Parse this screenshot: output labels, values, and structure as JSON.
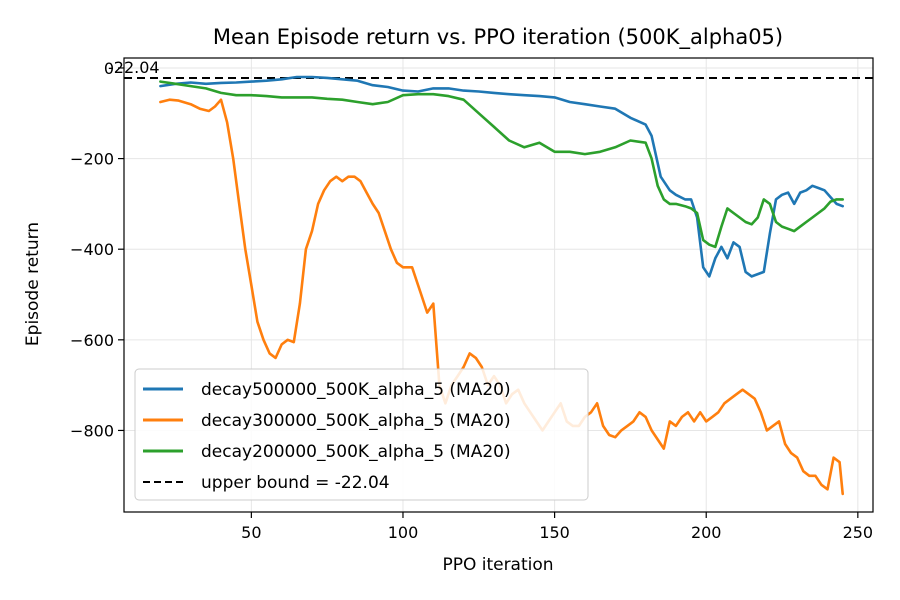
{
  "chart_data": {
    "type": "line",
    "title": "Mean Episode return vs. PPO iteration (500K_alpha05)",
    "xlabel": "PPO iteration",
    "ylabel": "Episode return",
    "xlim": [
      8,
      255
    ],
    "ylim": [
      -980,
      22
    ],
    "xticks": [
      50,
      100,
      150,
      200,
      250
    ],
    "yticks": [
      0,
      -200,
      -400,
      -600,
      -800
    ],
    "grid": true,
    "legend_placement": "lower-left",
    "upper_bound": {
      "value": -22.04,
      "label": "upper bound = -22.04",
      "annotation": "-22.04",
      "color": "#000000",
      "annotation_color": "#1f77b4"
    },
    "series": [
      {
        "name": "decay500000_500K_alpha_5 (MA20)",
        "color": "#1f77b4",
        "x": [
          20,
          25,
          30,
          35,
          40,
          45,
          50,
          55,
          60,
          65,
          70,
          75,
          80,
          85,
          90,
          95,
          100,
          105,
          110,
          115,
          120,
          125,
          130,
          135,
          140,
          145,
          150,
          155,
          160,
          165,
          170,
          175,
          180,
          182,
          185,
          188,
          190,
          193,
          195,
          197,
          199,
          201,
          203,
          205,
          207,
          209,
          211,
          213,
          215,
          217,
          219,
          221,
          223,
          225,
          227,
          229,
          231,
          233,
          235,
          237,
          239,
          241,
          243,
          245
        ],
        "y": [
          -40,
          -35,
          -32,
          -35,
          -33,
          -32,
          -30,
          -28,
          -25,
          -20,
          -20,
          -22,
          -25,
          -28,
          -38,
          -42,
          -50,
          -52,
          -45,
          -45,
          -50,
          -52,
          -55,
          -58,
          -60,
          -62,
          -65,
          -75,
          -80,
          -85,
          -90,
          -110,
          -125,
          -150,
          -240,
          -270,
          -280,
          -290,
          -290,
          -330,
          -440,
          -460,
          -420,
          -395,
          -420,
          -385,
          -395,
          -450,
          -460,
          -455,
          -450,
          -365,
          -290,
          -280,
          -275,
          -300,
          -275,
          -270,
          -260,
          -265,
          -270,
          -285,
          -300,
          -305
        ]
      },
      {
        "name": "decay300000_500K_alpha_5 (MA20)",
        "color": "#ff7f0e",
        "x": [
          20,
          23,
          26,
          30,
          33,
          36,
          38,
          40,
          42,
          44,
          46,
          48,
          50,
          52,
          54,
          56,
          58,
          60,
          62,
          64,
          66,
          68,
          70,
          72,
          74,
          76,
          78,
          80,
          82,
          84,
          86,
          88,
          90,
          92,
          94,
          96,
          98,
          100,
          103,
          106,
          108,
          110,
          112,
          114,
          116,
          118,
          120,
          122,
          124,
          126,
          128,
          130,
          132,
          134,
          136,
          138,
          140,
          142,
          144,
          146,
          148,
          150,
          152,
          154,
          156,
          158,
          160,
          162,
          164,
          166,
          168,
          170,
          172,
          174,
          176,
          178,
          180,
          182,
          184,
          186,
          188,
          190,
          192,
          194,
          196,
          198,
          200,
          202,
          204,
          206,
          208,
          210,
          212,
          214,
          216,
          218,
          220,
          222,
          224,
          226,
          228,
          230,
          232,
          234,
          236,
          238,
          240,
          242,
          244,
          245
        ],
        "y": [
          -75,
          -70,
          -72,
          -80,
          -90,
          -95,
          -85,
          -70,
          -120,
          -200,
          -300,
          -400,
          -480,
          -560,
          -600,
          -630,
          -640,
          -610,
          -600,
          -605,
          -520,
          -400,
          -360,
          -300,
          -270,
          -250,
          -240,
          -250,
          -240,
          -240,
          -250,
          -275,
          -300,
          -320,
          -360,
          -400,
          -430,
          -440,
          -440,
          -500,
          -540,
          -520,
          -700,
          -740,
          -700,
          -680,
          -660,
          -630,
          -640,
          -660,
          -700,
          -680,
          -700,
          -740,
          -720,
          -710,
          -740,
          -760,
          -780,
          -800,
          -780,
          -760,
          -740,
          -780,
          -790,
          -790,
          -770,
          -760,
          -740,
          -790,
          -810,
          -815,
          -800,
          -790,
          -780,
          -760,
          -770,
          -800,
          -820,
          -840,
          -780,
          -790,
          -770,
          -760,
          -780,
          -760,
          -780,
          -770,
          -760,
          -740,
          -730,
          -720,
          -710,
          -720,
          -730,
          -760,
          -800,
          -790,
          -780,
          -830,
          -850,
          -860,
          -890,
          -900,
          -900,
          -920,
          -930,
          -860,
          -870,
          -940
        ]
      },
      {
        "name": "decay200000_500K_alpha_5 (MA20)",
        "color": "#2ca02c",
        "x": [
          20,
          25,
          30,
          35,
          40,
          45,
          50,
          55,
          60,
          65,
          70,
          75,
          80,
          85,
          90,
          95,
          100,
          105,
          110,
          115,
          120,
          125,
          130,
          135,
          140,
          145,
          150,
          155,
          160,
          165,
          170,
          175,
          180,
          182,
          184,
          186,
          188,
          190,
          193,
          195,
          197,
          199,
          201,
          203,
          205,
          207,
          209,
          211,
          213,
          215,
          217,
          219,
          221,
          223,
          225,
          227,
          229,
          231,
          233,
          235,
          237,
          239,
          241,
          243,
          245
        ],
        "y": [
          -30,
          -35,
          -40,
          -45,
          -55,
          -60,
          -60,
          -62,
          -65,
          -65,
          -65,
          -68,
          -70,
          -75,
          -80,
          -75,
          -60,
          -58,
          -58,
          -62,
          -70,
          -100,
          -130,
          -160,
          -175,
          -165,
          -185,
          -185,
          -190,
          -185,
          -175,
          -160,
          -165,
          -200,
          -260,
          -290,
          -300,
          -300,
          -305,
          -310,
          -320,
          -380,
          -390,
          -395,
          -350,
          -310,
          -320,
          -330,
          -340,
          -345,
          -330,
          -290,
          -300,
          -340,
          -350,
          -355,
          -360,
          -350,
          -340,
          -330,
          -320,
          -310,
          -295,
          -290,
          -290
        ]
      }
    ]
  }
}
